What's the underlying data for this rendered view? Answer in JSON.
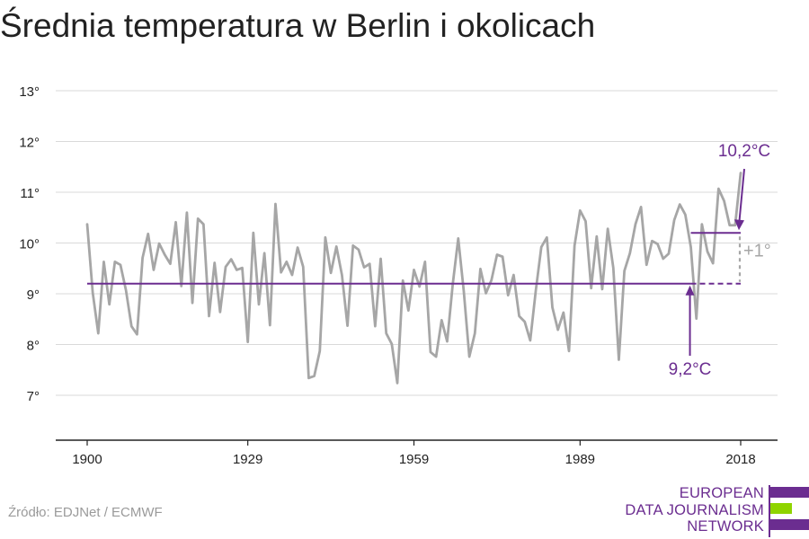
{
  "title": "Średnia temperatura w Berlin i okolicach",
  "source": "Źródło: EDJNet / ECMWF",
  "logo": {
    "lines": [
      "EUROPEAN",
      "DATA JOURNALISM",
      "NETWORK"
    ],
    "colors": {
      "purple": "#6b2d90",
      "green": "#8fd400"
    }
  },
  "colors": {
    "line": "#a6a6a6",
    "accent": "#6b2d90",
    "grid": "#d9d9d9",
    "axis": "#222222",
    "label": "#222222",
    "delta": "#a6a6a6"
  },
  "chart_data": {
    "type": "line",
    "title": "Średnia temperatura w Berlin i okolicach",
    "xlabel": "",
    "ylabel": "",
    "xlim": [
      1900,
      2018
    ],
    "ylim": [
      7,
      13
    ],
    "x_ticks": [
      1900,
      1929,
      1959,
      1989,
      2018
    ],
    "x_tick_labels": [
      "1900",
      "1929",
      "1959",
      "1989",
      "2018"
    ],
    "y_ticks": [
      7,
      8,
      9,
      10,
      11,
      12,
      13
    ],
    "y_tick_labels": [
      "7°",
      "8°",
      "9°",
      "10°",
      "11°",
      "12°",
      "13°"
    ],
    "grid": true,
    "series": [
      {
        "x_start": 1900,
        "values": [
          10.37,
          9.02,
          8.22,
          9.63,
          8.79,
          9.63,
          9.57,
          9.07,
          8.36,
          8.2,
          9.71,
          10.18,
          9.47,
          9.99,
          9.77,
          9.59,
          10.41,
          9.15,
          10.6,
          8.82,
          10.48,
          10.37,
          8.56,
          9.61,
          8.64,
          9.53,
          9.68,
          9.47,
          9.51,
          8.05,
          10.2,
          8.79,
          9.8,
          8.38,
          10.77,
          9.42,
          9.63,
          9.37,
          9.91,
          9.53,
          7.34,
          7.38,
          7.87,
          10.11,
          9.41,
          9.93,
          9.37,
          8.37,
          9.95,
          9.87,
          9.52,
          9.59,
          8.36,
          9.69,
          8.22,
          8.01,
          7.24,
          9.26,
          8.67,
          9.47,
          9.14,
          9.63,
          7.85,
          7.76,
          8.48,
          8.06,
          9.18,
          10.09,
          9.05,
          7.76,
          8.22,
          9.49,
          9.01,
          9.27,
          9.77,
          9.73,
          8.97,
          9.37,
          8.56,
          8.45,
          8.08,
          9.06,
          9.92,
          10.11,
          8.73,
          8.29,
          8.63,
          7.87,
          9.95,
          10.64,
          10.43,
          9.11,
          10.13,
          9.09,
          10.28,
          9.51,
          7.7,
          9.45,
          9.8,
          10.37,
          10.71,
          9.57,
          10.04,
          9.98,
          9.69,
          9.79,
          10.45,
          10.76,
          10.56,
          9.92,
          8.51,
          10.37,
          9.83,
          9.6,
          11.07,
          10.83,
          10.35,
          10.35,
          11.38
        ]
      }
    ],
    "annotations": {
      "baseline": {
        "value": 9.2,
        "label": "9,2°C",
        "x_from": 1900,
        "x_to": 2018,
        "solid_until": 2009
      },
      "recent": {
        "value": 10.2,
        "label": "10,2°C",
        "x_from": 2009,
        "x_to": 2018
      },
      "delta": {
        "label": "+1°"
      }
    }
  }
}
